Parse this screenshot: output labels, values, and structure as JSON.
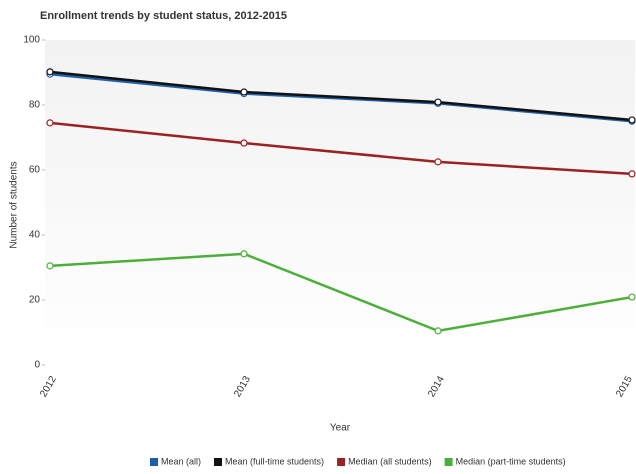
{
  "chart_data": {
    "type": "line",
    "title": "Enrollment trends by student status, 2012-2015",
    "x_label": "Year",
    "y_label": "Number of students",
    "categories": [
      "2012",
      "2013",
      "2014",
      "2015"
    ],
    "series": [
      {
        "name": "Mean (all)",
        "color": "#1f5fa8",
        "values": [
          89.5,
          83.5,
          80.5,
          75
        ]
      },
      {
        "name": "Mean (full-time students)",
        "color": "#111111",
        "values": [
          90.2,
          84,
          80.9,
          75.4
        ]
      },
      {
        "name": "Median (all students)",
        "color": "#9b2222",
        "values": [
          74.5,
          68.3,
          62.5,
          58.8
        ]
      },
      {
        "name": "Median (part-time students)",
        "color": "#4caf3a",
        "values": [
          30.5,
          34.2,
          10.5,
          20.9
        ]
      }
    ],
    "ylim": [
      0,
      100
    ],
    "yticks": [
      0,
      20,
      40,
      60,
      80,
      100
    ],
    "legend": "bottom"
  }
}
